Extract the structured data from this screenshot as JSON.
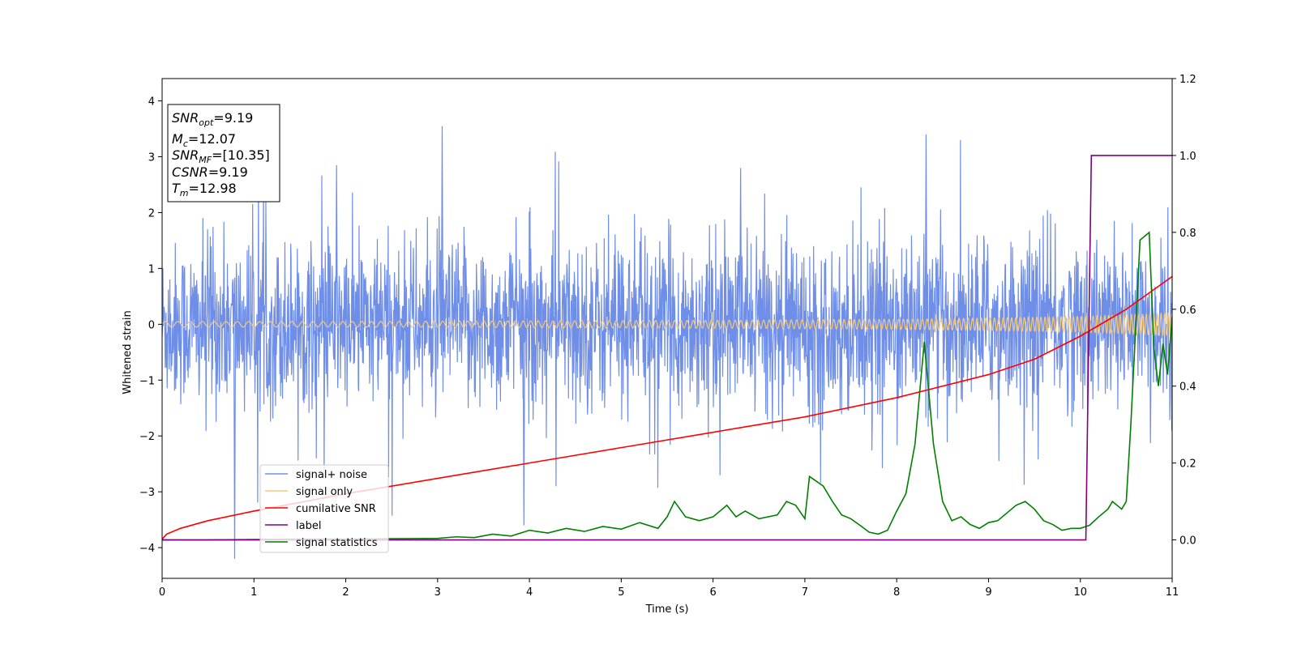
{
  "chart_data": {
    "type": "line",
    "xlabel": "Time (s)",
    "ylabel": "Whitened strain",
    "xlim": [
      0,
      11
    ],
    "ylim_left": [
      -4.55,
      4.4
    ],
    "ylim_right": [
      -0.1,
      1.2
    ],
    "x_ticks": [
      0,
      1,
      2,
      3,
      4,
      5,
      6,
      7,
      8,
      9,
      10,
      11
    ],
    "y_ticks_left": [
      -4,
      -3,
      -2,
      -1,
      0,
      1,
      2,
      3,
      4
    ],
    "y_ticks_right": [
      0.0,
      0.2,
      0.4,
      0.6,
      0.8,
      1.0,
      1.2
    ],
    "grid": false,
    "legend_position": "lower-left",
    "series": [
      {
        "name": "signal+ noise",
        "axis": "left",
        "color": "#6f8ee8",
        "description_values": {
          "typical_band": [
            -1.5,
            1.5
          ],
          "spike_max": 3.55,
          "spike_min": -4.2
        }
      },
      {
        "name": "signal only",
        "axis": "left",
        "color": "#f5c97a",
        "amplitude_points": {
          "x": [
            0,
            2,
            4,
            6,
            8,
            9,
            10,
            10.5,
            11
          ],
          "amp": [
            0.05,
            0.05,
            0.06,
            0.07,
            0.09,
            0.11,
            0.14,
            0.17,
            0.2
          ]
        }
      },
      {
        "name": "cumilative SNR",
        "axis": "right",
        "color": "#ff0000",
        "x": [
          0,
          0.05,
          0.2,
          0.5,
          1,
          2,
          3,
          4,
          5,
          6,
          7,
          8,
          9,
          9.5,
          10,
          10.5,
          11
        ],
        "y": [
          0.002,
          0.015,
          0.03,
          0.05,
          0.075,
          0.12,
          0.16,
          0.2,
          0.24,
          0.28,
          0.32,
          0.37,
          0.43,
          0.47,
          0.53,
          0.6,
          0.685
        ]
      },
      {
        "name": "label",
        "axis": "right",
        "color": "#800080",
        "x": [
          0,
          10.06,
          10.12,
          11
        ],
        "y": [
          0,
          0,
          1,
          1
        ]
      },
      {
        "name": "signal statistics",
        "axis": "right",
        "color": "#008000",
        "x": [
          0,
          0.5,
          1,
          1.5,
          2,
          2.5,
          3,
          3.2,
          3.4,
          3.6,
          3.8,
          4.0,
          4.2,
          4.4,
          4.6,
          4.8,
          5.0,
          5.2,
          5.4,
          5.5,
          5.58,
          5.7,
          5.85,
          6.0,
          6.15,
          6.25,
          6.35,
          6.5,
          6.7,
          6.8,
          6.9,
          7.0,
          7.05,
          7.2,
          7.3,
          7.4,
          7.5,
          7.6,
          7.7,
          7.8,
          7.9,
          8.0,
          8.1,
          8.2,
          8.3,
          8.4,
          8.5,
          8.6,
          8.7,
          8.8,
          8.9,
          9.0,
          9.1,
          9.2,
          9.3,
          9.4,
          9.5,
          9.6,
          9.7,
          9.8,
          9.9,
          10.0,
          10.1,
          10.2,
          10.3,
          10.35,
          10.45,
          10.5,
          10.55,
          10.65,
          10.75,
          10.8,
          10.85,
          10.9,
          10.95,
          11.0
        ],
        "y": [
          0,
          0.0,
          0.001,
          0.002,
          0.002,
          0.003,
          0.004,
          0.008,
          0.006,
          0.015,
          0.01,
          0.025,
          0.018,
          0.03,
          0.022,
          0.035,
          0.028,
          0.045,
          0.03,
          0.06,
          0.1,
          0.06,
          0.05,
          0.06,
          0.09,
          0.06,
          0.075,
          0.055,
          0.065,
          0.1,
          0.09,
          0.055,
          0.165,
          0.14,
          0.1,
          0.065,
          0.055,
          0.038,
          0.02,
          0.015,
          0.025,
          0.075,
          0.12,
          0.25,
          0.515,
          0.25,
          0.1,
          0.05,
          0.06,
          0.04,
          0.03,
          0.045,
          0.05,
          0.07,
          0.09,
          0.1,
          0.08,
          0.05,
          0.04,
          0.025,
          0.03,
          0.03,
          0.038,
          0.06,
          0.08,
          0.1,
          0.08,
          0.1,
          0.3,
          0.78,
          0.8,
          0.5,
          0.4,
          0.51,
          0.43,
          0.58
        ]
      }
    ],
    "info_box": {
      "lines": [
        {
          "base": "SNR",
          "sub": "opt",
          "value": "=9.19"
        },
        {
          "base": "M",
          "sub": "c",
          "value": "=12.07"
        },
        {
          "base": "SNR",
          "sub": "MF",
          "value": "=[10.35]"
        },
        {
          "base": "CSNR",
          "sub": "",
          "value": "=9.19"
        },
        {
          "base": "T",
          "sub": "m",
          "value": "=12.98"
        }
      ]
    }
  }
}
